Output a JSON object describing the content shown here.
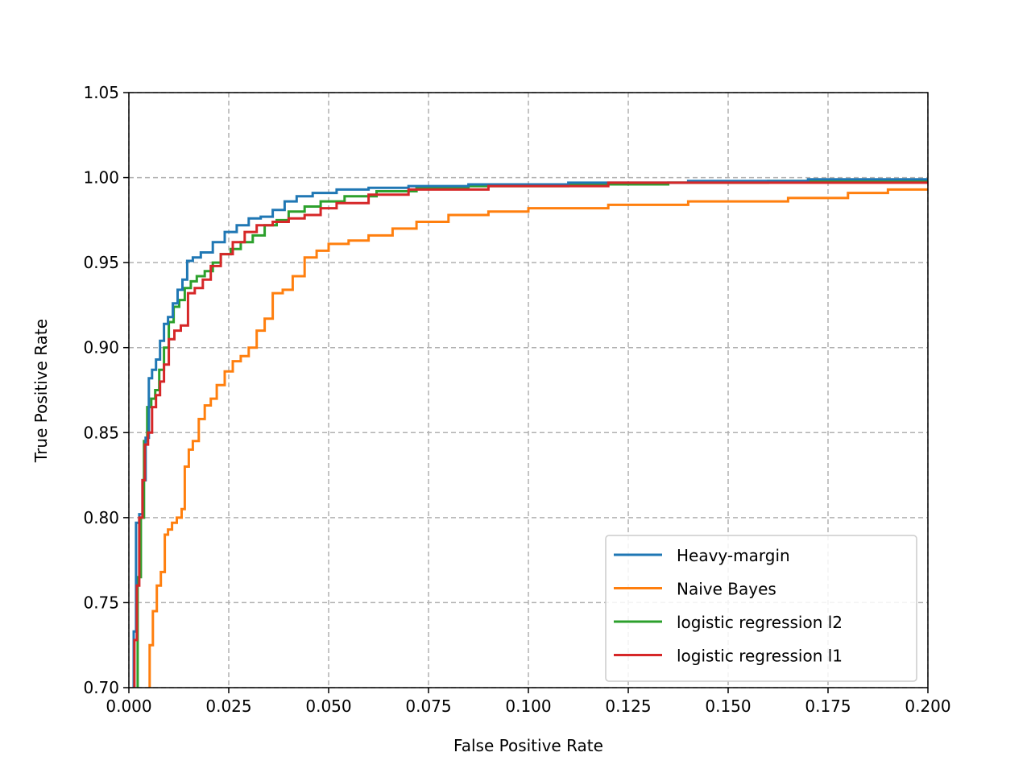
{
  "chart_data": {
    "type": "line",
    "title": "",
    "xlabel": "False Positive Rate",
    "ylabel": "True Positive Rate",
    "xlim": [
      0.0,
      0.2
    ],
    "ylim": [
      0.7,
      1.05
    ],
    "xticks": [
      0.0,
      0.025,
      0.05,
      0.075,
      0.1,
      0.125,
      0.15,
      0.175,
      0.2
    ],
    "xtick_labels": [
      "0.000",
      "0.025",
      "0.050",
      "0.075",
      "0.100",
      "0.125",
      "0.150",
      "0.175",
      "0.200"
    ],
    "yticks": [
      0.7,
      0.75,
      0.8,
      0.85,
      0.9,
      0.95,
      1.0,
      1.05
    ],
    "ytick_labels": [
      "0.70",
      "0.75",
      "0.80",
      "0.85",
      "0.90",
      "0.95",
      "1.00",
      "1.05"
    ],
    "grid": true,
    "legend_position": "lower-right",
    "series": [
      {
        "name": "Heavy-margin",
        "color": "#1f77b4",
        "x": [
          0.0012,
          0.0012,
          0.0018,
          0.0018,
          0.0026,
          0.0026,
          0.0034,
          0.0034,
          0.0042,
          0.0042,
          0.005,
          0.005,
          0.0058,
          0.0058,
          0.0068,
          0.0068,
          0.0078,
          0.0078,
          0.0088,
          0.0088,
          0.0098,
          0.0098,
          0.011,
          0.011,
          0.0122,
          0.0122,
          0.0134,
          0.0134,
          0.0146,
          0.0146,
          0.016,
          0.016,
          0.018,
          0.018,
          0.021,
          0.021,
          0.024,
          0.024,
          0.027,
          0.027,
          0.03,
          0.03,
          0.033,
          0.033,
          0.036,
          0.036,
          0.039,
          0.039,
          0.042,
          0.042,
          0.046,
          0.046,
          0.052,
          0.052,
          0.06,
          0.06,
          0.07,
          0.07,
          0.085,
          0.085,
          0.11,
          0.11,
          0.14,
          0.14,
          0.17,
          0.17,
          0.2
        ],
        "y": [
          0.7,
          0.733,
          0.733,
          0.797,
          0.797,
          0.802,
          0.802,
          0.822,
          0.822,
          0.847,
          0.847,
          0.882,
          0.882,
          0.887,
          0.887,
          0.893,
          0.893,
          0.904,
          0.904,
          0.914,
          0.914,
          0.918,
          0.918,
          0.926,
          0.926,
          0.934,
          0.934,
          0.94,
          0.94,
          0.951,
          0.951,
          0.953,
          0.953,
          0.956,
          0.956,
          0.962,
          0.962,
          0.968,
          0.968,
          0.972,
          0.972,
          0.976,
          0.976,
          0.977,
          0.977,
          0.981,
          0.981,
          0.986,
          0.986,
          0.989,
          0.989,
          0.991,
          0.991,
          0.993,
          0.993,
          0.994,
          0.994,
          0.995,
          0.995,
          0.996,
          0.996,
          0.997,
          0.997,
          0.998,
          0.998,
          0.999,
          0.999
        ]
      },
      {
        "name": "Naive Bayes",
        "color": "#ff7f0e",
        "x": [
          0.0052,
          0.0052,
          0.006,
          0.006,
          0.007,
          0.007,
          0.008,
          0.008,
          0.009,
          0.009,
          0.0098,
          0.0098,
          0.0108,
          0.0108,
          0.012,
          0.012,
          0.0132,
          0.0132,
          0.014,
          0.014,
          0.015,
          0.015,
          0.016,
          0.016,
          0.0175,
          0.0175,
          0.019,
          0.019,
          0.0205,
          0.0205,
          0.022,
          0.022,
          0.024,
          0.024,
          0.026,
          0.026,
          0.028,
          0.028,
          0.03,
          0.03,
          0.032,
          0.032,
          0.034,
          0.034,
          0.036,
          0.036,
          0.0385,
          0.0385,
          0.041,
          0.041,
          0.044,
          0.044,
          0.047,
          0.047,
          0.05,
          0.05,
          0.055,
          0.055,
          0.06,
          0.06,
          0.066,
          0.066,
          0.072,
          0.072,
          0.08,
          0.08,
          0.09,
          0.09,
          0.1,
          0.1,
          0.12,
          0.12,
          0.14,
          0.14,
          0.165,
          0.165,
          0.18,
          0.18,
          0.19,
          0.19,
          0.2
        ],
        "y": [
          0.7,
          0.725,
          0.725,
          0.745,
          0.745,
          0.76,
          0.76,
          0.768,
          0.768,
          0.79,
          0.79,
          0.793,
          0.793,
          0.797,
          0.797,
          0.8,
          0.8,
          0.805,
          0.805,
          0.83,
          0.83,
          0.84,
          0.84,
          0.845,
          0.845,
          0.858,
          0.858,
          0.866,
          0.866,
          0.87,
          0.87,
          0.878,
          0.878,
          0.886,
          0.886,
          0.892,
          0.892,
          0.895,
          0.895,
          0.9,
          0.9,
          0.91,
          0.91,
          0.917,
          0.917,
          0.932,
          0.932,
          0.934,
          0.934,
          0.942,
          0.942,
          0.953,
          0.953,
          0.957,
          0.957,
          0.961,
          0.961,
          0.963,
          0.963,
          0.966,
          0.966,
          0.97,
          0.97,
          0.974,
          0.974,
          0.978,
          0.978,
          0.98,
          0.98,
          0.982,
          0.982,
          0.984,
          0.984,
          0.986,
          0.986,
          0.988,
          0.988,
          0.991,
          0.991,
          0.993,
          0.993
        ]
      },
      {
        "name": "logistic regression l2",
        "color": "#2ca02c",
        "x": [
          0.0022,
          0.0022,
          0.003,
          0.003,
          0.0038,
          0.0038,
          0.0046,
          0.0046,
          0.0056,
          0.0056,
          0.0066,
          0.0066,
          0.0076,
          0.0076,
          0.0088,
          0.0088,
          0.01,
          0.01,
          0.0112,
          0.0112,
          0.0126,
          0.0126,
          0.014,
          0.014,
          0.0155,
          0.0155,
          0.017,
          0.017,
          0.019,
          0.019,
          0.021,
          0.021,
          0.023,
          0.023,
          0.0255,
          0.0255,
          0.028,
          0.028,
          0.031,
          0.031,
          0.034,
          0.034,
          0.037,
          0.037,
          0.04,
          0.04,
          0.044,
          0.044,
          0.048,
          0.048,
          0.054,
          0.054,
          0.062,
          0.062,
          0.072,
          0.072,
          0.085,
          0.085,
          0.11,
          0.11,
          0.135,
          0.135,
          0.16,
          0.16,
          0.2
        ],
        "y": [
          0.7,
          0.765,
          0.765,
          0.8,
          0.8,
          0.845,
          0.845,
          0.865,
          0.865,
          0.87,
          0.87,
          0.875,
          0.875,
          0.887,
          0.887,
          0.9,
          0.9,
          0.915,
          0.915,
          0.924,
          0.924,
          0.928,
          0.928,
          0.935,
          0.935,
          0.939,
          0.939,
          0.942,
          0.942,
          0.945,
          0.945,
          0.95,
          0.95,
          0.955,
          0.955,
          0.958,
          0.958,
          0.962,
          0.962,
          0.966,
          0.966,
          0.972,
          0.972,
          0.975,
          0.975,
          0.98,
          0.98,
          0.983,
          0.983,
          0.986,
          0.986,
          0.989,
          0.989,
          0.992,
          0.992,
          0.994,
          0.994,
          0.995,
          0.995,
          0.996,
          0.996,
          0.997,
          0.997,
          0.998,
          0.998
        ]
      },
      {
        "name": "logistic regression l1",
        "color": "#d62728",
        "x": [
          0.0014,
          0.0014,
          0.002,
          0.002,
          0.0026,
          0.0026,
          0.0034,
          0.0034,
          0.004,
          0.004,
          0.0048,
          0.0048,
          0.0058,
          0.0058,
          0.0068,
          0.0068,
          0.0078,
          0.0078,
          0.0088,
          0.0088,
          0.01,
          0.01,
          0.0114,
          0.0114,
          0.013,
          0.013,
          0.0148,
          0.0148,
          0.0165,
          0.0165,
          0.0185,
          0.0185,
          0.0205,
          0.0205,
          0.023,
          0.023,
          0.026,
          0.026,
          0.029,
          0.029,
          0.032,
          0.032,
          0.036,
          0.036,
          0.04,
          0.04,
          0.044,
          0.044,
          0.048,
          0.048,
          0.052,
          0.052,
          0.06,
          0.06,
          0.07,
          0.07,
          0.09,
          0.09,
          0.12,
          0.12,
          0.2
        ],
        "y": [
          0.7,
          0.728,
          0.728,
          0.76,
          0.76,
          0.8,
          0.8,
          0.822,
          0.822,
          0.843,
          0.843,
          0.85,
          0.85,
          0.865,
          0.865,
          0.872,
          0.872,
          0.88,
          0.88,
          0.89,
          0.89,
          0.905,
          0.905,
          0.91,
          0.91,
          0.913,
          0.913,
          0.932,
          0.932,
          0.935,
          0.935,
          0.94,
          0.94,
          0.948,
          0.948,
          0.955,
          0.955,
          0.962,
          0.962,
          0.968,
          0.968,
          0.972,
          0.972,
          0.974,
          0.974,
          0.976,
          0.976,
          0.978,
          0.978,
          0.982,
          0.982,
          0.985,
          0.985,
          0.99,
          0.99,
          0.993,
          0.993,
          0.995,
          0.995,
          0.997,
          0.997
        ]
      }
    ]
  }
}
